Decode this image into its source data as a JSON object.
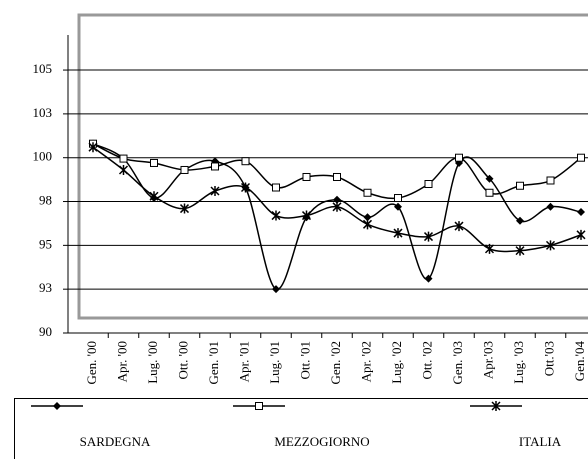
{
  "chart_data": {
    "type": "line",
    "categories": [
      "Gen. '00",
      "Apr. '00",
      "Lug. '00",
      "Ott. '00",
      "Gen. '01",
      "Apr. '01",
      "Lug. '01",
      "Ott. '01",
      "Gen. '02",
      "Apr. '02",
      "Lug. '02",
      "Ott. '02",
      "Gen. '03",
      "Apr.'03",
      "Lug. '03",
      "Ott.'03",
      "Gen.'04"
    ],
    "series": [
      {
        "name": "SARDEGNA",
        "color": "#000000",
        "marker": "diamond",
        "values": [
          100.8,
          99.95,
          97.7,
          99.3,
          99.8,
          98.3,
          92.5,
          96.6,
          97.6,
          96.6,
          97.2,
          93.1,
          99.7,
          98.8,
          96.4,
          97.2,
          96.9
        ]
      },
      {
        "name": "MEZZOGIORNO",
        "color": "#000000",
        "marker": "square",
        "values": [
          100.8,
          99.95,
          99.7,
          99.3,
          99.5,
          99.8,
          98.3,
          98.9,
          98.9,
          98.0,
          97.7,
          98.5,
          100.0,
          98.0,
          98.4,
          98.7,
          100.0
        ]
      },
      {
        "name": "ITALIA",
        "color": "#000000",
        "marker": "asterisk",
        "values": [
          100.6,
          99.3,
          97.8,
          97.1,
          98.1,
          98.3,
          96.7,
          96.7,
          97.2,
          96.2,
          95.7,
          95.5,
          96.1,
          94.8,
          94.7,
          95.0,
          95.6
        ]
      }
    ],
    "ylim": [
      90,
      107
    ],
    "yticks": [
      90,
      {
        "value": 92.5,
        "label": "93"
      },
      95,
      {
        "value": 97.5,
        "label": "98"
      },
      100,
      {
        "value": 102.5,
        "label": "103"
      },
      105
    ],
    "grid": true,
    "legend": "bottom"
  }
}
